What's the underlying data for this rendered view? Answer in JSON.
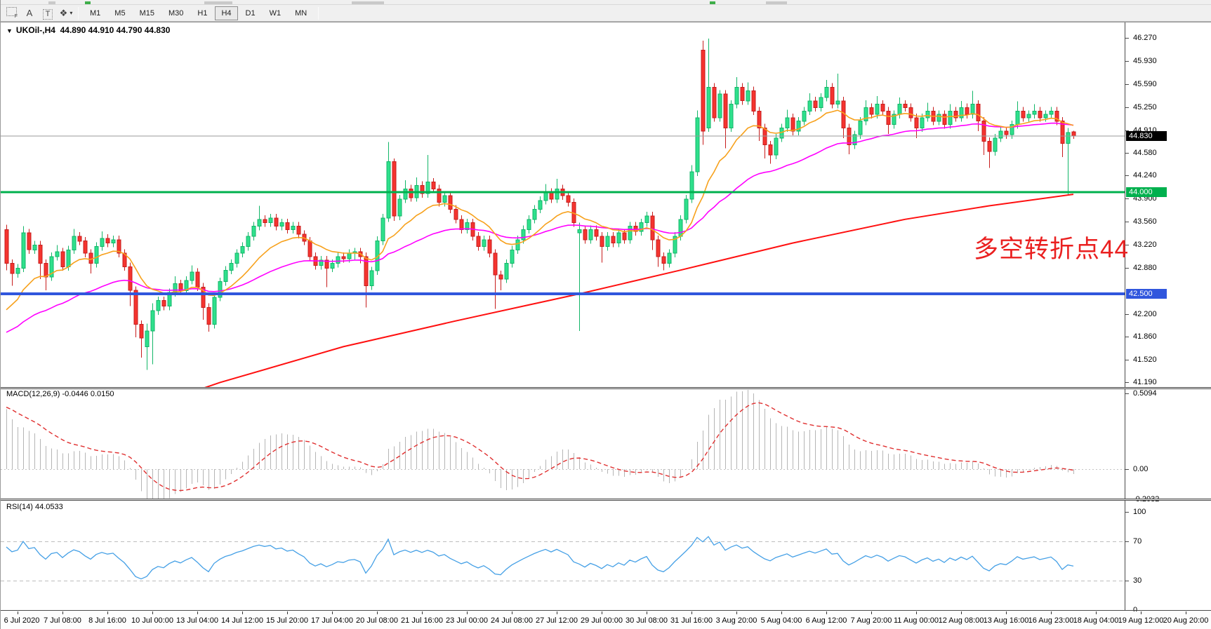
{
  "toolbar": {
    "icons": [
      {
        "name": "templates-grid-icon",
        "glyph": "",
        "sub": "F",
        "style": "gridbox"
      },
      {
        "name": "text-label-icon",
        "glyph": "A",
        "sub": "",
        "style": "plain"
      },
      {
        "name": "text-frame-icon",
        "glyph": "T",
        "sub": "",
        "style": "boxed"
      },
      {
        "name": "draw-objects-icon",
        "glyph": "❖",
        "sub": "",
        "style": "plain",
        "caret": true
      }
    ],
    "caret_glyph": "▾",
    "timeframes": [
      "M1",
      "M5",
      "M15",
      "M30",
      "H1",
      "H4",
      "D1",
      "W1",
      "MN"
    ],
    "active_timeframe": "H4"
  },
  "chart": {
    "caret_glyph": "▼",
    "symbol_period": "UKOil-,H4",
    "ohlc_text": "44.890 44.910 44.790 44.830"
  },
  "annotation": {
    "text": "多空转折点44",
    "color": "#ea2020"
  },
  "macd": {
    "label": "MACD(12,26,9)",
    "macd_value": "-0.0446",
    "signal_value": "0.0150",
    "axis": [
      {
        "text": "0.5094",
        "v": 0.5094
      },
      {
        "text": "0.00",
        "v": 0.0
      },
      {
        "text": "-0.2032",
        "v": -0.2032
      }
    ]
  },
  "rsi": {
    "label": "RSI(14)",
    "value": "44.0533",
    "axis": [
      {
        "text": "100",
        "v": 100
      },
      {
        "text": "70",
        "v": 70
      },
      {
        "text": "30",
        "v": 30
      },
      {
        "text": "0",
        "v": 0
      }
    ],
    "levels": [
      70,
      30
    ]
  },
  "price_axis": {
    "ticks": [
      "46.270",
      "45.930",
      "45.590",
      "45.250",
      "44.910",
      "44.580",
      "44.240",
      "43.900",
      "43.560",
      "43.220",
      "42.880",
      "42.200",
      "41.860",
      "41.520",
      "41.190"
    ],
    "boxes": [
      {
        "text": "44.830",
        "price": 44.83,
        "bg": "#000000"
      },
      {
        "text": "44.000",
        "price": 44.0,
        "bg": "#00b04e"
      },
      {
        "text": "42.500",
        "price": 42.5,
        "bg": "#3056dd"
      }
    ]
  },
  "time_axis": {
    "labels": [
      "6 Jul 2020",
      "7 Jul 08:00",
      "8 Jul 16:00",
      "10 Jul 00:00",
      "13 Jul 04:00",
      "14 Jul 12:00",
      "15 Jul 20:00",
      "17 Jul 04:00",
      "20 Jul 08:00",
      "21 Jul 16:00",
      "23 Jul 00:00",
      "24 Jul 08:00",
      "27 Jul 12:00",
      "29 Jul 00:00",
      "30 Jul 08:00",
      "31 Jul 16:00",
      "3 Aug 20:00",
      "5 Aug 04:00",
      "6 Aug 12:00",
      "7 Aug 20:00",
      "11 Aug 00:00",
      "12 Aug 08:00",
      "13 Aug 16:00",
      "16 Aug 23:00",
      "18 Aug 04:00",
      "19 Aug 12:00",
      "20 Aug 20:00"
    ]
  },
  "chart_data": {
    "type": "candlestick",
    "symbol": "UKOil-",
    "timeframe": "H4",
    "title": "UKOil-,H4  44.890 44.910 44.790 44.830",
    "last_ohlc": {
      "open": 44.89,
      "high": 44.91,
      "low": 44.79,
      "close": 44.83
    },
    "price_axis_range": [
      41.19,
      46.27
    ],
    "hlines": [
      {
        "name": "current-price",
        "price": 44.83,
        "color": "#9a9a9a",
        "width": 1
      },
      {
        "name": "resistance-44",
        "price": 44.0,
        "color": "#00b04e",
        "width": 3
      },
      {
        "name": "support-42.5",
        "price": 42.5,
        "color": "#3056dd",
        "width": 4
      }
    ],
    "colors": {
      "bull_fill": "#2fe08c",
      "bull_stroke": "#12b668",
      "bear_fill": "#f5342f",
      "bear_stroke": "#c71d1d",
      "ema_fast": "#f7a11c",
      "ema_slow": "#ff00ff",
      "ma_long": "#ff1010",
      "macd_hist": "#b5b5b5",
      "macd_signal": "#e03030",
      "rsi_line": "#45a0e6"
    },
    "overlays": {
      "ema_fast": {
        "period": 13,
        "seed": 42.15
      },
      "ema_slow": {
        "period": 40,
        "seed": 41.88
      },
      "ma_long_points": [
        [
          0,
          40.42
        ],
        [
          20,
          40.68
        ],
        [
          38,
          41.19
        ],
        [
          60,
          41.72
        ],
        [
          80,
          42.1
        ],
        [
          102,
          42.5
        ],
        [
          120,
          42.85
        ],
        [
          140,
          43.25
        ],
        [
          160,
          43.6
        ],
        [
          175,
          43.8
        ],
        [
          190,
          43.97
        ]
      ]
    },
    "indicators": {
      "macd_params": [
        12,
        26,
        9
      ],
      "macd_values": [
        -0.0446,
        0.015
      ],
      "rsi_period": 14,
      "rsi_value": 44.0533
    },
    "candles": [
      [
        43.45,
        43.52,
        42.85,
        42.95
      ],
      [
        42.95,
        43.01,
        42.62,
        42.8
      ],
      [
        42.8,
        42.94,
        42.74,
        42.88
      ],
      [
        42.88,
        43.5,
        42.82,
        43.4
      ],
      [
        43.4,
        43.46,
        43.09,
        43.15
      ],
      [
        43.15,
        43.28,
        43.09,
        43.22
      ],
      [
        43.22,
        43.28,
        42.72,
        42.95
      ],
      [
        42.95,
        43.01,
        42.55,
        42.75
      ],
      [
        42.75,
        43.11,
        42.69,
        43.05
      ],
      [
        43.05,
        43.22,
        42.99,
        43.12
      ],
      [
        43.12,
        43.18,
        42.84,
        42.9
      ],
      [
        42.9,
        43.21,
        42.84,
        43.15
      ],
      [
        43.15,
        43.46,
        43.09,
        43.35
      ],
      [
        43.35,
        43.41,
        43.22,
        43.28
      ],
      [
        43.28,
        43.34,
        43.04,
        43.1
      ],
      [
        43.1,
        43.16,
        42.8,
        42.95
      ],
      [
        42.95,
        43.26,
        42.89,
        43.2
      ],
      [
        43.2,
        43.42,
        43.14,
        43.32
      ],
      [
        43.32,
        43.38,
        43.19,
        43.25
      ],
      [
        43.25,
        43.36,
        43.19,
        43.3
      ],
      [
        43.3,
        43.36,
        43.04,
        43.1
      ],
      [
        43.1,
        43.16,
        42.84,
        42.9
      ],
      [
        42.9,
        42.96,
        42.32,
        42.55
      ],
      [
        42.55,
        42.61,
        41.86,
        42.05
      ],
      [
        42.05,
        42.11,
        41.56,
        41.85
      ],
      [
        41.72,
        42.06,
        41.38,
        41.95
      ],
      [
        41.95,
        42.36,
        41.46,
        42.25
      ],
      [
        42.25,
        42.46,
        42.19,
        42.4
      ],
      [
        42.4,
        42.46,
        42.26,
        42.32
      ],
      [
        42.32,
        42.58,
        42.26,
        42.52
      ],
      [
        42.52,
        42.76,
        42.46,
        42.65
      ],
      [
        42.65,
        42.71,
        42.49,
        42.55
      ],
      [
        42.55,
        42.76,
        42.49,
        42.7
      ],
      [
        42.7,
        42.92,
        42.64,
        42.82
      ],
      [
        42.82,
        42.88,
        42.54,
        42.6
      ],
      [
        42.6,
        42.66,
        42.12,
        42.3
      ],
      [
        42.3,
        42.36,
        41.94,
        42.05
      ],
      [
        42.05,
        42.51,
        41.99,
        42.45
      ],
      [
        42.45,
        42.74,
        42.39,
        42.68
      ],
      [
        42.68,
        42.91,
        42.62,
        42.85
      ],
      [
        42.85,
        43.01,
        42.79,
        42.95
      ],
      [
        42.95,
        43.16,
        42.89,
        43.1
      ],
      [
        43.1,
        43.26,
        43.04,
        43.2
      ],
      [
        43.2,
        43.41,
        43.14,
        43.35
      ],
      [
        43.35,
        43.56,
        43.29,
        43.5
      ],
      [
        43.5,
        43.8,
        43.44,
        43.6
      ],
      [
        43.6,
        43.66,
        43.49,
        43.55
      ],
      [
        43.55,
        43.68,
        43.49,
        43.62
      ],
      [
        43.62,
        43.68,
        43.44,
        43.5
      ],
      [
        43.5,
        43.61,
        43.44,
        43.55
      ],
      [
        43.55,
        43.61,
        43.39,
        43.45
      ],
      [
        43.45,
        43.56,
        43.39,
        43.5
      ],
      [
        43.5,
        43.56,
        43.32,
        43.38
      ],
      [
        43.38,
        43.44,
        43.22,
        43.28
      ],
      [
        43.28,
        43.34,
        42.99,
        43.05
      ],
      [
        43.05,
        43.11,
        42.86,
        42.92
      ],
      [
        42.92,
        43.06,
        42.86,
        43.0
      ],
      [
        43.0,
        43.06,
        42.6,
        42.88
      ],
      [
        42.88,
        43.01,
        42.82,
        42.95
      ],
      [
        42.95,
        43.11,
        42.89,
        43.05
      ],
      [
        43.05,
        43.11,
        42.96,
        43.02
      ],
      [
        43.02,
        43.16,
        42.96,
        43.1
      ],
      [
        43.1,
        43.18,
        43.0,
        43.12
      ],
      [
        43.12,
        43.18,
        42.95,
        43.05
      ],
      [
        43.05,
        43.11,
        42.3,
        42.62
      ],
      [
        42.62,
        42.9,
        42.56,
        42.84
      ],
      [
        42.84,
        43.35,
        42.78,
        43.28
      ],
      [
        43.28,
        43.68,
        43.22,
        43.62
      ],
      [
        43.62,
        44.74,
        43.56,
        44.45
      ],
      [
        44.45,
        44.5,
        43.58,
        43.65
      ],
      [
        43.65,
        43.96,
        43.59,
        43.9
      ],
      [
        43.9,
        44.18,
        43.84,
        44.05
      ],
      [
        44.05,
        44.11,
        43.86,
        43.92
      ],
      [
        43.92,
        44.22,
        43.86,
        44.1
      ],
      [
        44.1,
        44.16,
        43.92,
        43.98
      ],
      [
        43.98,
        44.55,
        43.92,
        44.15
      ],
      [
        44.15,
        44.21,
        43.99,
        44.05
      ],
      [
        44.05,
        44.11,
        43.79,
        43.85
      ],
      [
        43.85,
        44.01,
        43.79,
        43.95
      ],
      [
        43.95,
        44.01,
        43.69,
        43.75
      ],
      [
        43.75,
        43.81,
        43.54,
        43.6
      ],
      [
        43.6,
        43.66,
        43.39,
        43.45
      ],
      [
        43.45,
        43.61,
        43.39,
        43.55
      ],
      [
        43.55,
        43.61,
        43.29,
        43.35
      ],
      [
        43.35,
        43.41,
        43.14,
        43.2
      ],
      [
        43.2,
        43.36,
        43.14,
        43.3
      ],
      [
        43.3,
        43.36,
        43.04,
        43.1
      ],
      [
        43.1,
        43.16,
        42.28,
        42.78
      ],
      [
        42.78,
        42.84,
        42.55,
        42.72
      ],
      [
        42.72,
        43.01,
        42.66,
        42.95
      ],
      [
        42.95,
        43.21,
        42.89,
        43.15
      ],
      [
        43.15,
        43.36,
        43.09,
        43.3
      ],
      [
        43.3,
        43.51,
        43.24,
        43.45
      ],
      [
        43.45,
        43.66,
        43.39,
        43.6
      ],
      [
        43.6,
        43.81,
        43.54,
        43.75
      ],
      [
        43.75,
        43.94,
        43.69,
        43.88
      ],
      [
        43.88,
        44.12,
        43.82,
        44.0
      ],
      [
        44.0,
        44.06,
        43.84,
        43.9
      ],
      [
        43.9,
        44.2,
        43.84,
        44.05
      ],
      [
        44.05,
        44.11,
        43.89,
        43.95
      ],
      [
        43.95,
        44.01,
        43.79,
        43.85
      ],
      [
        43.85,
        43.91,
        43.49,
        43.55
      ],
      [
        43.4,
        43.55,
        41.95,
        43.45
      ],
      [
        43.45,
        43.51,
        43.24,
        43.3
      ],
      [
        43.3,
        43.51,
        43.24,
        43.45
      ],
      [
        43.45,
        43.51,
        43.29,
        43.35
      ],
      [
        43.35,
        43.41,
        42.96,
        43.2
      ],
      [
        43.2,
        43.41,
        43.14,
        43.35
      ],
      [
        43.35,
        43.41,
        43.19,
        43.25
      ],
      [
        43.25,
        43.46,
        43.19,
        43.4
      ],
      [
        43.4,
        43.46,
        43.24,
        43.3
      ],
      [
        43.3,
        43.56,
        43.24,
        43.5
      ],
      [
        43.5,
        43.56,
        43.36,
        43.42
      ],
      [
        43.42,
        43.61,
        43.36,
        43.55
      ],
      [
        43.55,
        43.71,
        43.49,
        43.65
      ],
      [
        43.65,
        43.71,
        43.15,
        43.3
      ],
      [
        43.3,
        43.36,
        42.9,
        43.05
      ],
      [
        43.05,
        43.11,
        42.85,
        42.95
      ],
      [
        42.95,
        43.16,
        42.89,
        43.1
      ],
      [
        43.1,
        43.41,
        43.04,
        43.35
      ],
      [
        43.35,
        43.66,
        43.29,
        43.6
      ],
      [
        43.6,
        43.96,
        43.54,
        43.9
      ],
      [
        43.9,
        44.4,
        43.84,
        44.3
      ],
      [
        44.3,
        45.21,
        44.24,
        45.1
      ],
      [
        46.1,
        46.24,
        44.7,
        44.9
      ],
      [
        44.95,
        46.27,
        44.89,
        45.55
      ],
      [
        45.55,
        45.61,
        45.04,
        45.1
      ],
      [
        45.1,
        45.51,
        45.04,
        45.45
      ],
      [
        45.45,
        45.51,
        44.65,
        44.95
      ],
      [
        44.95,
        45.36,
        44.89,
        45.3
      ],
      [
        45.3,
        45.7,
        45.24,
        45.55
      ],
      [
        45.55,
        45.61,
        45.29,
        45.35
      ],
      [
        45.35,
        45.62,
        45.29,
        45.5
      ],
      [
        45.5,
        45.56,
        45.14,
        45.2
      ],
      [
        45.2,
        45.26,
        44.76,
        44.95
      ],
      [
        44.95,
        45.01,
        44.5,
        44.7
      ],
      [
        44.7,
        44.76,
        44.42,
        44.55
      ],
      [
        44.55,
        44.86,
        44.49,
        44.8
      ],
      [
        44.8,
        45.01,
        44.74,
        44.95
      ],
      [
        44.95,
        45.22,
        44.89,
        45.1
      ],
      [
        45.1,
        45.16,
        44.84,
        44.9
      ],
      [
        44.9,
        45.11,
        44.84,
        45.05
      ],
      [
        45.05,
        45.26,
        44.99,
        45.2
      ],
      [
        45.2,
        45.46,
        45.14,
        45.35
      ],
      [
        45.35,
        45.41,
        45.19,
        45.25
      ],
      [
        45.25,
        45.46,
        45.19,
        45.4
      ],
      [
        45.4,
        45.66,
        45.34,
        45.55
      ],
      [
        45.55,
        45.61,
        45.24,
        45.3
      ],
      [
        45.3,
        45.75,
        45.24,
        45.35
      ],
      [
        45.35,
        45.41,
        44.8,
        44.95
      ],
      [
        44.95,
        45.01,
        44.56,
        44.7
      ],
      [
        44.7,
        44.91,
        44.64,
        44.85
      ],
      [
        44.85,
        45.11,
        44.79,
        45.05
      ],
      [
        45.05,
        45.36,
        44.99,
        45.25
      ],
      [
        45.25,
        45.31,
        45.09,
        45.15
      ],
      [
        45.15,
        45.42,
        45.09,
        45.3
      ],
      [
        45.3,
        45.36,
        45.14,
        45.2
      ],
      [
        45.2,
        45.26,
        44.86,
        45.0
      ],
      [
        45.0,
        45.21,
        44.94,
        45.15
      ],
      [
        45.15,
        45.4,
        45.09,
        45.3
      ],
      [
        45.3,
        45.36,
        45.19,
        45.25
      ],
      [
        45.25,
        45.31,
        45.04,
        45.1
      ],
      [
        45.1,
        45.16,
        44.8,
        44.95
      ],
      [
        44.95,
        45.16,
        44.89,
        45.1
      ],
      [
        45.1,
        45.32,
        45.04,
        45.2
      ],
      [
        45.2,
        45.26,
        44.99,
        45.05
      ],
      [
        45.05,
        45.21,
        44.99,
        45.15
      ],
      [
        45.15,
        45.21,
        44.94,
        45.0
      ],
      [
        45.0,
        45.3,
        44.94,
        45.2
      ],
      [
        45.2,
        45.26,
        45.04,
        45.1
      ],
      [
        45.1,
        45.35,
        45.04,
        45.25
      ],
      [
        45.25,
        45.31,
        45.09,
        45.15
      ],
      [
        45.15,
        45.5,
        45.09,
        45.3
      ],
      [
        45.3,
        45.36,
        44.9,
        45.05
      ],
      [
        45.05,
        45.11,
        44.55,
        44.75
      ],
      [
        44.75,
        44.81,
        44.36,
        44.6
      ],
      [
        44.6,
        44.86,
        44.54,
        44.8
      ],
      [
        44.8,
        44.96,
        44.74,
        44.9
      ],
      [
        44.9,
        44.96,
        44.79,
        44.85
      ],
      [
        44.85,
        45.06,
        44.79,
        45.0
      ],
      [
        45.0,
        45.34,
        44.94,
        45.2
      ],
      [
        45.2,
        45.26,
        45.04,
        45.1
      ],
      [
        45.1,
        45.21,
        45.04,
        45.15
      ],
      [
        45.15,
        45.3,
        45.09,
        45.2
      ],
      [
        45.2,
        45.26,
        45.04,
        45.1
      ],
      [
        45.1,
        45.21,
        45.04,
        45.15
      ],
      [
        45.15,
        45.26,
        45.09,
        45.2
      ],
      [
        45.2,
        45.26,
        44.99,
        45.05
      ],
      [
        45.05,
        45.11,
        44.52,
        44.72
      ],
      [
        44.72,
        44.95,
        43.96,
        44.88
      ],
      [
        44.89,
        44.91,
        44.79,
        44.83
      ]
    ]
  }
}
